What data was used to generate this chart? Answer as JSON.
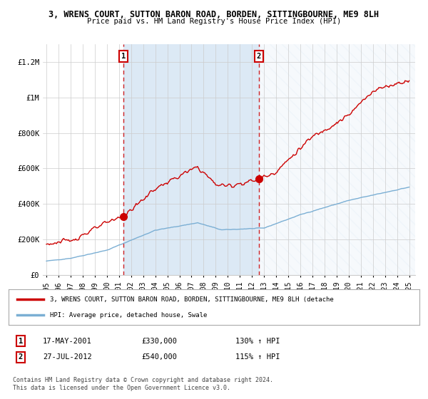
{
  "title": "3, WRENS COURT, SUTTON BARON ROAD, BORDEN, SITTINGBOURNE, ME9 8LH",
  "subtitle": "Price paid vs. HM Land Registry's House Price Index (HPI)",
  "legend_line1": "3, WRENS COURT, SUTTON BARON ROAD, BORDEN, SITTINGBOURNE, ME9 8LH (detache",
  "legend_line2": "HPI: Average price, detached house, Swale",
  "annotation1_date": "17-MAY-2001",
  "annotation1_price": "£330,000",
  "annotation1_hpi": "130% ↑ HPI",
  "annotation2_date": "27-JUL-2012",
  "annotation2_price": "£540,000",
  "annotation2_hpi": "115% ↑ HPI",
  "copyright": "Contains HM Land Registry data © Crown copyright and database right 2024.\nThis data is licensed under the Open Government Licence v3.0.",
  "line1_color": "#cc0000",
  "line2_color": "#7bafd4",
  "shade_color": "#dce9f5",
  "background_color": "#ffffff",
  "grid_color": "#cccccc",
  "ylim": [
    0,
    1300000
  ],
  "yticks": [
    0,
    200000,
    400000,
    600000,
    800000,
    1000000,
    1200000
  ],
  "ytick_labels": [
    "£0",
    "£200K",
    "£400K",
    "£600K",
    "£800K",
    "£1M",
    "£1.2M"
  ],
  "marker1_x": 2001.38,
  "marker1_y": 330000,
  "marker2_x": 2012.57,
  "marker2_y": 540000,
  "vline1_x": 2001.38,
  "vline2_x": 2012.57,
  "shade_x_start": 2001.38,
  "shade_x_end": 2012.57,
  "xmin": 1994.7,
  "xmax": 2025.5,
  "xticks": [
    1995,
    1996,
    1997,
    1998,
    1999,
    2000,
    2001,
    2002,
    2003,
    2004,
    2005,
    2006,
    2007,
    2008,
    2009,
    2010,
    2011,
    2012,
    2013,
    2014,
    2015,
    2016,
    2017,
    2018,
    2019,
    2020,
    2021,
    2022,
    2023,
    2024,
    2025
  ]
}
